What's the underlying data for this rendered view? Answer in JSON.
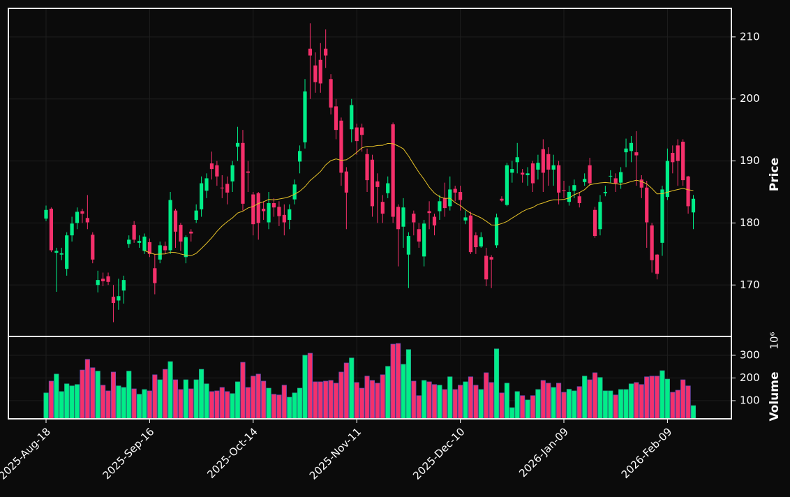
{
  "chart_data": {
    "type": "candlestick",
    "categories": [
      "2025-Aug-18",
      null,
      null,
      null,
      null,
      null,
      null,
      null,
      null,
      null,
      null,
      null,
      null,
      null,
      null,
      null,
      null,
      null,
      null,
      null,
      "2025-Sep-16",
      null,
      null,
      null,
      null,
      null,
      null,
      null,
      null,
      null,
      null,
      null,
      null,
      null,
      null,
      null,
      null,
      null,
      null,
      null,
      "2025-Oct-14",
      null,
      null,
      null,
      null,
      null,
      null,
      null,
      null,
      null,
      null,
      null,
      null,
      null,
      null,
      null,
      null,
      null,
      null,
      null,
      "2025-Nov-11",
      null,
      null,
      null,
      null,
      null,
      null,
      null,
      null,
      null,
      null,
      null,
      null,
      null,
      null,
      null,
      null,
      null,
      null,
      null,
      "2025-Dec-10",
      null,
      null,
      null,
      null,
      null,
      null,
      null,
      null,
      null,
      null,
      null,
      null,
      null,
      null,
      null,
      null,
      null,
      null,
      null,
      "2026-Jan-09",
      null,
      null,
      null,
      null,
      null,
      null,
      null,
      null,
      null,
      null,
      null,
      null,
      null,
      null,
      null,
      null,
      null,
      null,
      null,
      "2026-Feb-09",
      null,
      null,
      null,
      null,
      null
    ],
    "open": [
      180.7,
      182.3,
      175.2,
      174.9,
      172.6,
      178,
      180,
      181.9,
      180.8,
      178.1,
      170,
      171,
      171.4,
      168.1,
      167.5,
      169.1,
      176.6,
      179.7,
      176.8,
      175.5,
      176.9,
      172.7,
      174.1,
      176.3,
      175.6,
      182,
      179.7,
      174.5,
      178.6,
      180.5,
      182.2,
      185.2,
      189.6,
      189.3,
      185.7,
      186.3,
      186.7,
      192.3,
      192.9,
      188.3,
      184.6,
      184.8,
      182.3,
      180.1,
      183.2,
      182.6,
      181.3,
      180.5,
      183.8,
      189.9,
      193,
      208.1,
      205.4,
      206.3,
      208.1,
      203.2,
      198.8,
      196.5,
      188.3,
      195.1,
      195.4,
      195.4,
      191.1,
      190.2,
      186.7,
      183.4,
      184.8,
      195.9,
      182.6,
      179.4,
      174.9,
      181.5,
      179,
      174.6,
      181.9,
      181,
      181.9,
      184,
      182.7,
      185.5,
      185,
      180.4,
      181.2,
      178,
      176.2,
      174.7,
      174.5,
      176.4,
      183.9,
      182.9,
      188.1,
      189.8,
      188.1,
      187.7,
      189.6,
      188.6,
      191.9,
      191.1,
      188.6,
      189.3,
      185.3,
      183.4,
      185.2,
      184.3,
      186.6,
      189.3,
      182.1,
      179,
      184.8,
      187.5,
      187.2,
      186.5,
      191.4,
      191.6,
      191.4,
      187,
      185.7,
      179.6,
      174.9,
      176.8,
      184.2,
      191.3,
      192.5,
      193.1,
      187.5,
      181.7
    ],
    "high": [
      182.8,
      182.5,
      176,
      176,
      178.5,
      181,
      182.5,
      182.3,
      184.5,
      178.5,
      172.3,
      172,
      172,
      170,
      171,
      171.5,
      178,
      180.3,
      178,
      178.3,
      177.5,
      175,
      177,
      177,
      185,
      182.3,
      180,
      178,
      179,
      183,
      187.5,
      188,
      191.5,
      190,
      187.7,
      187.5,
      190,
      195.5,
      195,
      190,
      185,
      185,
      183.5,
      185,
      184,
      183.5,
      183,
      183,
      187,
      192.5,
      203.2,
      212.2,
      207.5,
      209,
      211.2,
      204,
      200,
      197,
      189,
      200,
      196,
      196,
      192,
      191,
      188,
      184.5,
      187.5,
      196.2,
      183,
      184,
      178.5,
      182,
      180,
      180.5,
      183.5,
      181.5,
      184.5,
      186.5,
      187.5,
      186,
      186,
      182,
      181.8,
      178.5,
      178.5,
      176,
      174.8,
      181.5,
      184.3,
      189.7,
      190,
      192.9,
      188.7,
      189,
      190,
      191,
      193.5,
      192.2,
      191,
      190,
      186.8,
      186,
      187,
      185,
      188,
      190.5,
      182.6,
      184.5,
      186,
      188.5,
      188,
      189,
      193.6,
      194,
      194.8,
      187.7,
      186.8,
      180,
      175,
      186,
      192,
      192.5,
      193.5,
      193.5,
      187.6,
      184.5
    ],
    "low": [
      180.3,
      175.3,
      168.9,
      174,
      171.5,
      177,
      179,
      180,
      179,
      173.5,
      168.8,
      169.8,
      170,
      164,
      166,
      167,
      176,
      176.8,
      176,
      175,
      174.5,
      168.5,
      173.5,
      175,
      175,
      176,
      175.5,
      173.5,
      177,
      180,
      181,
      184,
      187,
      186,
      184,
      183,
      185,
      190,
      182,
      185,
      178,
      177.3,
      180.5,
      179,
      181,
      179.5,
      178,
      179,
      183,
      188,
      192,
      200,
      201,
      201,
      205,
      197.5,
      193.5,
      186,
      179,
      193,
      191,
      191.5,
      185,
      181,
      180,
      180,
      184,
      180,
      173,
      176,
      169.5,
      178,
      176,
      173,
      179,
      178,
      180.5,
      181,
      182,
      183.5,
      182,
      179.8,
      175,
      175,
      176,
      169.8,
      169.5,
      176,
      183.4,
      182.7,
      186.5,
      188,
      186.5,
      186,
      185,
      187,
      185,
      186,
      186,
      183,
      184,
      182.8,
      184,
      182.5,
      186,
      186,
      177.6,
      178,
      184.3,
      186.5,
      185,
      185.5,
      189,
      189.8,
      186,
      184,
      176,
      172,
      170.9,
      174.7,
      183.7,
      188,
      186,
      186,
      181.5,
      179
    ],
    "close": [
      182.1,
      175.6,
      175.5,
      175.1,
      178,
      179.9,
      181.8,
      181.5,
      180.1,
      174.1,
      170.8,
      170.6,
      170.5,
      167.1,
      168.2,
      170.8,
      177.3,
      177.3,
      177.1,
      177.8,
      175,
      170.3,
      176.4,
      175.6,
      183.7,
      178.6,
      177,
      177.7,
      178.3,
      182,
      186.4,
      187.2,
      188.7,
      187.5,
      185.6,
      184.9,
      189.3,
      192.9,
      183.1,
      188.1,
      179.8,
      180,
      181.9,
      183.2,
      182.5,
      181.1,
      180.1,
      182.2,
      186.2,
      191.6,
      201.2,
      207,
      202.7,
      202.5,
      207,
      198.6,
      195,
      188.1,
      184.9,
      199,
      193.2,
      194.2,
      186.9,
      182.7,
      185.8,
      181.5,
      186.4,
      181,
      179,
      182.5,
      177.9,
      180.1,
      177,
      179.9,
      181.6,
      179.6,
      183.5,
      182.4,
      185.4,
      184.9,
      183.7,
      180.9,
      175.3,
      176.1,
      177.7,
      170.9,
      174.1,
      180.9,
      183.6,
      189.3,
      188.7,
      190.6,
      187.8,
      188,
      186.4,
      189.7,
      188.1,
      188.6,
      189.3,
      184.9,
      185.2,
      185,
      186.1,
      183.2,
      187.1,
      186.4,
      177.9,
      183.4,
      185,
      187.6,
      186.4,
      188.2,
      192,
      192.9,
      190.9,
      185.7,
      180.1,
      174,
      171.8,
      185.4,
      190,
      189.8,
      190,
      186.9,
      182.7,
      183.9
    ],
    "volume": [
      134,
      186,
      217,
      140,
      174,
      165,
      171,
      235,
      282,
      245,
      230,
      168,
      143,
      226,
      165,
      158,
      230,
      152,
      128,
      149,
      143,
      214,
      192,
      238,
      272,
      192,
      149,
      192,
      152,
      192,
      238,
      174,
      140,
      143,
      158,
      140,
      131,
      183,
      269,
      158,
      208,
      217,
      186,
      155,
      128,
      125,
      168,
      115,
      134,
      155,
      300,
      309,
      183,
      183,
      186,
      189,
      177,
      226,
      266,
      288,
      180,
      155,
      208,
      189,
      177,
      214,
      251,
      349,
      352,
      260,
      325,
      186,
      122,
      189,
      183,
      171,
      168,
      149,
      205,
      149,
      168,
      183,
      205,
      168,
      149,
      223,
      180,
      328,
      134,
      177,
      69,
      140,
      122,
      103,
      122,
      149,
      189,
      177,
      158,
      177,
      137,
      150,
      143,
      162,
      208,
      192,
      223,
      202,
      143,
      143,
      125,
      149,
      149,
      174,
      180,
      171,
      205,
      208,
      208,
      232,
      195,
      137,
      146,
      192,
      165,
      78
    ],
    "mav": 20,
    "ylabel": "Price",
    "ylim": [
      161.7,
      214.6
    ],
    "yticks": [
      170,
      180,
      190,
      200,
      210
    ],
    "volume_label": "Volume",
    "volume_offset": "10⁶",
    "volume_ylim": [
      20,
      383
    ],
    "volume_yticks": [
      100,
      200,
      300
    ],
    "up_color": "#00ee88",
    "down_color": "#f5306b",
    "mav_color": "#e6c229",
    "grid": true
  }
}
